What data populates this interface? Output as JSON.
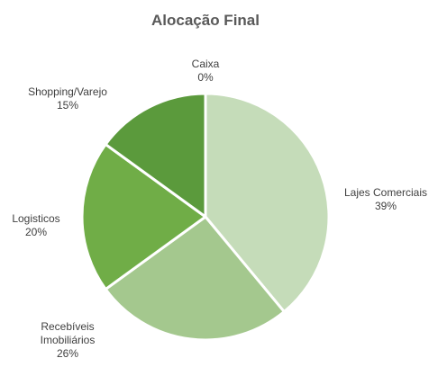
{
  "chart_data": {
    "type": "pie",
    "title": "Alocação Final",
    "slices": [
      {
        "label": "Lajes Comerciais",
        "label_lines": [
          "Lajes Comerciais"
        ],
        "value": 39,
        "value_label": "39%",
        "color": "#c5dcb9"
      },
      {
        "label": "Recebíveis Imobiliários",
        "label_lines": [
          "Recebíveis",
          "Imobiliários"
        ],
        "value": 26,
        "value_label": "26%",
        "color": "#a4c88e"
      },
      {
        "label": "Logisticos",
        "label_lines": [
          "Logisticos"
        ],
        "value": 20,
        "value_label": "20%",
        "color": "#70ad47"
      },
      {
        "label": "Shopping/Varejo",
        "label_lines": [
          "Shopping/Varejo"
        ],
        "value": 15,
        "value_label": "15%",
        "color": "#5b9a3c"
      },
      {
        "label": "Caixa",
        "label_lines": [
          "Caixa"
        ],
        "value": 0,
        "value_label": "0%",
        "color": "#548235"
      }
    ],
    "start": "12 o'clock",
    "direction": "clockwise",
    "slice_border_color": "#ffffff",
    "legend": "none"
  }
}
